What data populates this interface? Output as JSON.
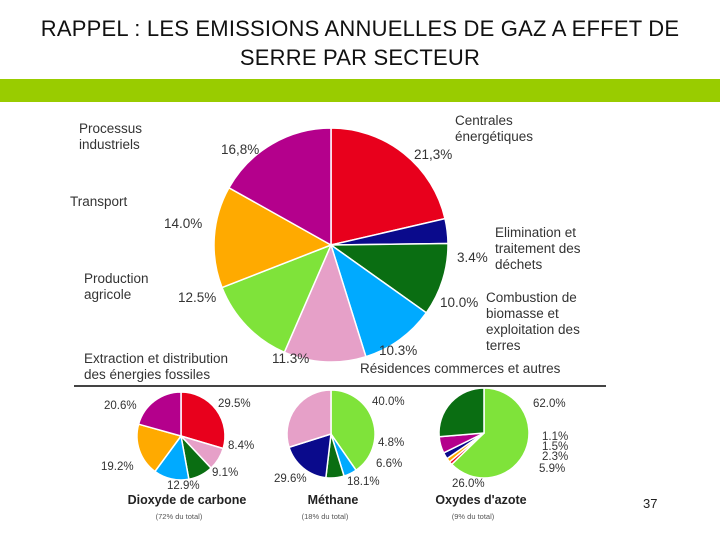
{
  "slide": {
    "title_line1": "RAPPEL : LES EMISSIONS ANNUELLES DE GAZ A EFFET DE",
    "title_line2": "SERRE PAR SECTEUR",
    "page_number": "37"
  },
  "colors": {
    "band": "#99cc00",
    "power": "#e8001c",
    "waste": "#0a0a8c",
    "biomass": "#0a6e12",
    "residential": "#00aaff",
    "fossil": "#e6a0c8",
    "agri": "#7fe33a",
    "transport": "#ffaa00",
    "industry": "#b4008c"
  },
  "chart_data": [
    {
      "type": "pie",
      "title": "",
      "slices": [
        {
          "key": "power",
          "label_lines": [
            "Centrales",
            "énergétiques"
          ],
          "value": 21.3,
          "pct_label": "21,3%",
          "color": "#e8001c"
        },
        {
          "key": "waste",
          "label_lines": [
            "Elimination et",
            "traitement des",
            "déchets"
          ],
          "value": 3.4,
          "pct_label": "3.4%",
          "color": "#0a0a8c"
        },
        {
          "key": "biomass",
          "label_lines": [
            "Combustion de",
            "biomasse et",
            "exploitation des",
            "terres"
          ],
          "value": 10.0,
          "pct_label": "10.0%",
          "color": "#0a6e12"
        },
        {
          "key": "residential",
          "label_lines": [
            "Résidences commerces et autres"
          ],
          "value": 10.3,
          "pct_label": "10.3%",
          "color": "#00aaff"
        },
        {
          "key": "fossil",
          "label_lines": [
            "Extraction et distribution",
            "des énergies fossiles"
          ],
          "value": 11.3,
          "pct_label": "11.3%",
          "color": "#e6a0c8"
        },
        {
          "key": "agri",
          "label_lines": [
            "Production",
            "agricole"
          ],
          "value": 12.5,
          "pct_label": "12.5%",
          "color": "#7fe33a"
        },
        {
          "key": "transport",
          "label_lines": [
            "Transport"
          ],
          "value": 14.0,
          "pct_label": "14.0%",
          "color": "#ffaa00"
        },
        {
          "key": "industry",
          "label_lines": [
            "Processus",
            "industriels"
          ],
          "value": 16.8,
          "pct_label": "16,8%",
          "color": "#b4008c"
        }
      ]
    },
    {
      "type": "pie",
      "title": "Dioxyde de carbone",
      "subtitle": "(72% du total)",
      "slices": [
        {
          "key": "power",
          "value": 29.5,
          "pct_label": "29.5%",
          "color": "#e8001c"
        },
        {
          "key": "fossil",
          "value": 8.4,
          "pct_label": "8.4%",
          "color": "#e6a0c8"
        },
        {
          "key": "biomass",
          "value": 9.1,
          "pct_label": "9.1%",
          "color": "#0a6e12"
        },
        {
          "key": "residential",
          "value": 12.9,
          "pct_label": "12.9%",
          "color": "#00aaff"
        },
        {
          "key": "transport",
          "value": 19.2,
          "pct_label": "19.2%",
          "color": "#ffaa00"
        },
        {
          "key": "industry",
          "value": 20.6,
          "pct_label": "20.6%",
          "color": "#b4008c"
        }
      ]
    },
    {
      "type": "pie",
      "title": "Méthane",
      "subtitle": "(18% du total)",
      "slices": [
        {
          "key": "agri",
          "value": 40.0,
          "pct_label": "40.0%",
          "color": "#7fe33a"
        },
        {
          "key": "residential",
          "value": 4.8,
          "pct_label": "4.8%",
          "color": "#00aaff"
        },
        {
          "key": "biomass",
          "value": 6.6,
          "pct_label": "6.6%",
          "color": "#0a6e12"
        },
        {
          "key": "waste",
          "value": 18.1,
          "pct_label": "18.1%",
          "color": "#0a0a8c"
        },
        {
          "key": "fossil",
          "value": 29.6,
          "pct_label": "29.6%",
          "color": "#e6a0c8"
        }
      ]
    },
    {
      "type": "pie",
      "title": "Oxydes d'azote",
      "subtitle": "(9% du total)",
      "slices": [
        {
          "key": "agri",
          "value": 62.0,
          "pct_label": "62.0%",
          "color": "#7fe33a"
        },
        {
          "key": "power",
          "value": 1.1,
          "pct_label": "1.1%",
          "color": "#e8001c"
        },
        {
          "key": "transport",
          "value": 1.5,
          "pct_label": "1.5%",
          "color": "#ffaa00"
        },
        {
          "key": "waste",
          "value": 2.3,
          "pct_label": "2.3%",
          "color": "#0a0a8c"
        },
        {
          "key": "industry",
          "value": 5.9,
          "pct_label": "5.9%",
          "color": "#b4008c"
        },
        {
          "key": "biomass",
          "value": 26.0,
          "pct_label": "26.0%",
          "color": "#0a6e12"
        }
      ]
    }
  ]
}
